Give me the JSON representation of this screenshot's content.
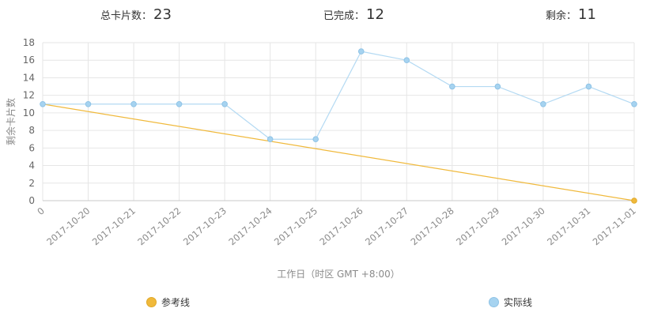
{
  "stats": {
    "total_label": "总卡片数：",
    "total_value": "23",
    "done_label": "已完成：",
    "done_value": "12",
    "remain_label": "剩余：",
    "remain_value": "11"
  },
  "legend": {
    "reference_label": "参考线",
    "actual_label": "实际线"
  },
  "colors": {
    "reference": "#f0b93b",
    "actual": "#b4daf3",
    "actual_point": "#a6d3f0",
    "grid": "#e6e6e6",
    "axis_text": "#8a8a8a"
  },
  "chart_data": {
    "type": "line",
    "x_categories": [
      "0",
      "2017-10-20",
      "2017-10-21",
      "2017-10-22",
      "2017-10-23",
      "2017-10-24",
      "2017-10-25",
      "2017-10-26",
      "2017-10-27",
      "2017-10-28",
      "2017-10-29",
      "2017-10-30",
      "2017-10-31",
      "2017-11-01"
    ],
    "xlabel": "工作日（时区 GMT +8:00）",
    "ylabel": "剩余卡片数",
    "ylim": [
      0,
      18
    ],
    "yticks": [
      0,
      2,
      4,
      6,
      8,
      10,
      12,
      14,
      16,
      18
    ],
    "grid": true,
    "legend_position": "bottom",
    "series": [
      {
        "name": "参考线",
        "values": [
          11,
          null,
          null,
          null,
          null,
          null,
          null,
          null,
          null,
          null,
          null,
          null,
          null,
          0
        ]
      },
      {
        "name": "实际线",
        "values": [
          11,
          11,
          11,
          11,
          11,
          7,
          7,
          17,
          16,
          13,
          13,
          11,
          13,
          11
        ]
      }
    ]
  }
}
